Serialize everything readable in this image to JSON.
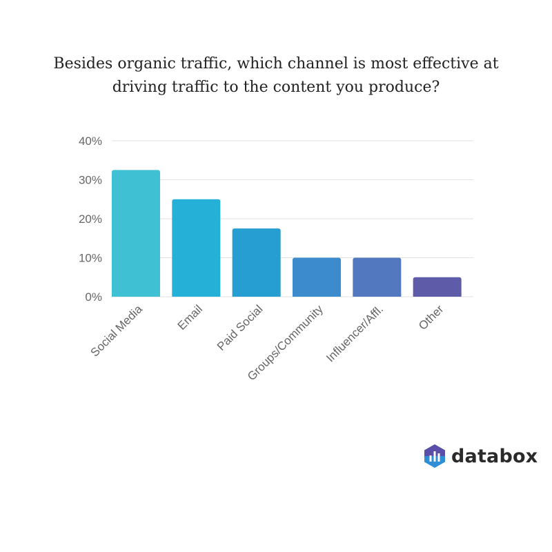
{
  "chart_data": {
    "type": "bar",
    "title": "Besides organic traffic, which channel is most effective at driving traffic to the content you produce?",
    "title_lines": [
      "Besides organic traffic, which channel is most effective at",
      "driving traffic to the content you produce?"
    ],
    "categories": [
      "Social Media",
      "Email",
      "Paid Social",
      "Groups/Community",
      "Influencer/Affl.",
      "Other"
    ],
    "values": [
      32.5,
      25,
      17.5,
      10,
      10,
      5
    ],
    "bar_colors": [
      "#3fc1d3",
      "#25b1d7",
      "#279ed1",
      "#3c8bcc",
      "#5279c0",
      "#5e5ba8"
    ],
    "ylim": [
      0,
      40
    ],
    "yticks": [
      0,
      10,
      20,
      30,
      40
    ],
    "ytick_labels": [
      "0%",
      "10%",
      "20%",
      "30%",
      "40%"
    ],
    "xlabel": "",
    "ylabel": "",
    "grid": true,
    "legend": "none"
  },
  "brand": {
    "name": "databox",
    "colors": [
      "#5b4ea8",
      "#2e8fd6",
      "#3fc1d3"
    ]
  }
}
